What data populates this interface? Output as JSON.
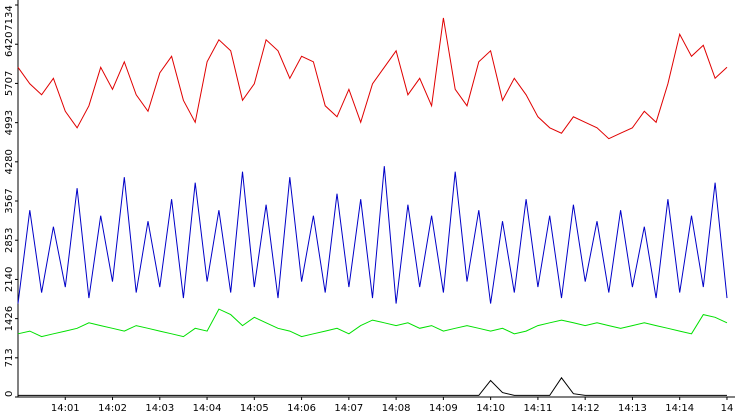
{
  "chart_data": {
    "type": "line",
    "x": [
      0,
      0.25,
      0.5,
      0.75,
      1,
      1.25,
      1.5,
      1.75,
      2,
      2.25,
      2.5,
      2.75,
      3,
      3.25,
      3.5,
      3.75,
      4,
      4.25,
      4.5,
      4.75,
      5,
      5.25,
      5.5,
      5.75,
      6,
      6.25,
      6.5,
      6.75,
      7,
      7.25,
      7.5,
      7.75,
      8,
      8.25,
      8.5,
      8.75,
      9,
      9.25,
      9.5,
      9.75,
      10,
      10.25,
      10.5,
      10.75,
      11,
      11.25,
      11.5,
      11.75,
      12,
      12.25,
      12.5,
      12.75,
      13,
      13.25,
      13.5,
      13.75,
      14,
      14.25,
      14.5,
      14.75,
      15
    ],
    "series": [
      {
        "color": "#e00000",
        "values": [
          6000,
          5700,
          5500,
          5800,
          5200,
          4900,
          5300,
          6000,
          5600,
          6100,
          5500,
          5200,
          5900,
          6200,
          5400,
          5000,
          6100,
          6500,
          6300,
          5400,
          5700,
          6500,
          6300,
          5800,
          6200,
          6100,
          5300,
          5100,
          5600,
          5000,
          5700,
          6000,
          6300,
          5500,
          5800,
          5300,
          6900,
          5600,
          5300,
          6100,
          6300,
          5400,
          5800,
          5500,
          5100,
          4900,
          4800,
          5100,
          5000,
          4900,
          4700,
          4800,
          4900,
          5200,
          5000,
          5700,
          6600,
          6200,
          6400,
          5800,
          6000
        ]
      },
      {
        "color": "#0000c8",
        "values": [
          1700,
          3400,
          1900,
          3100,
          2000,
          3800,
          1800,
          3300,
          2100,
          4000,
          1900,
          3200,
          2000,
          3600,
          1800,
          3900,
          2100,
          3400,
          1900,
          4100,
          2000,
          3500,
          1800,
          4000,
          2100,
          3300,
          1900,
          3700,
          2000,
          3600,
          1800,
          4200,
          1700,
          3500,
          2000,
          3300,
          1900,
          4100,
          2100,
          3400,
          1700,
          3200,
          1900,
          3600,
          2000,
          3300,
          1800,
          3500,
          2100,
          3200,
          1900,
          3400,
          2000,
          3100,
          1800,
          3600,
          1900,
          3300,
          2000,
          3900,
          1800
        ]
      },
      {
        "color": "#00e000",
        "values": [
          1150,
          1200,
          1100,
          1150,
          1200,
          1250,
          1350,
          1300,
          1250,
          1200,
          1300,
          1250,
          1200,
          1150,
          1100,
          1250,
          1200,
          1600,
          1500,
          1300,
          1450,
          1350,
          1250,
          1200,
          1100,
          1150,
          1200,
          1250,
          1150,
          1300,
          1400,
          1350,
          1300,
          1350,
          1250,
          1300,
          1200,
          1250,
          1300,
          1250,
          1200,
          1250,
          1150,
          1200,
          1300,
          1350,
          1400,
          1350,
          1300,
          1350,
          1300,
          1250,
          1300,
          1350,
          1300,
          1250,
          1200,
          1150,
          1500,
          1450,
          1350
        ]
      },
      {
        "color": "#000000",
        "values": [
          30,
          30,
          30,
          30,
          30,
          30,
          30,
          30,
          30,
          30,
          30,
          30,
          30,
          30,
          30,
          30,
          30,
          30,
          30,
          30,
          30,
          30,
          30,
          30,
          30,
          30,
          30,
          30,
          30,
          30,
          30,
          30,
          30,
          30,
          30,
          30,
          30,
          30,
          30,
          30,
          300,
          80,
          30,
          30,
          30,
          30,
          350,
          60,
          30,
          30,
          30,
          30,
          30,
          30,
          30,
          30,
          30,
          30,
          30,
          30,
          30
        ]
      }
    ],
    "xlim": [
      0,
      15.17
    ],
    "xticks": [
      {
        "value": 1,
        "label": "14:01"
      },
      {
        "value": 2,
        "label": "14:02"
      },
      {
        "value": 3,
        "label": "14:03"
      },
      {
        "value": 4,
        "label": "14:04"
      },
      {
        "value": 5,
        "label": "14:05"
      },
      {
        "value": 6,
        "label": "14:06"
      },
      {
        "value": 7,
        "label": "14:07"
      },
      {
        "value": 8,
        "label": "14:08"
      },
      {
        "value": 9,
        "label": "14:09"
      },
      {
        "value": 10,
        "label": "14:10"
      },
      {
        "value": 11,
        "label": "14:11"
      },
      {
        "value": 12,
        "label": "14:12"
      },
      {
        "value": 13,
        "label": "14:13"
      },
      {
        "value": 14,
        "label": "14:14"
      },
      {
        "value": 15,
        "label": "14"
      }
    ],
    "ylim": [
      0,
      7134
    ],
    "yticks": [
      0,
      713,
      1426,
      2140,
      2853,
      3567,
      4280,
      4993,
      5707,
      6420,
      7134
    ]
  }
}
